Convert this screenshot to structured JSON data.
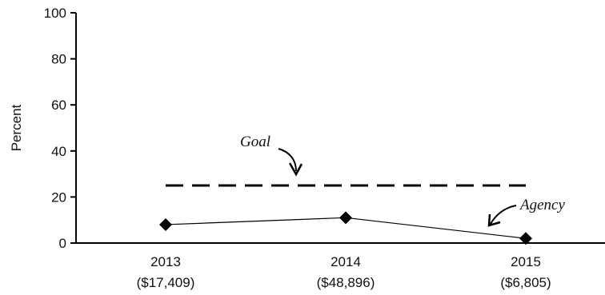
{
  "chart_data": {
    "type": "line",
    "ylabel": "Percent",
    "ylim": [
      0,
      100
    ],
    "yticks": [
      0,
      20,
      40,
      60,
      80,
      100
    ],
    "categories": [
      {
        "year": "2013",
        "amount": "($17,409)"
      },
      {
        "year": "2014",
        "amount": "($48,896)"
      },
      {
        "year": "2015",
        "amount": "($6,805)"
      }
    ],
    "series": [
      {
        "name": "Agency",
        "values": [
          8,
          11,
          2
        ],
        "style": "solid",
        "marker": "diamond",
        "color": "#000000"
      },
      {
        "name": "Goal",
        "values": [
          25,
          25,
          25
        ],
        "style": "dashed",
        "color": "#000000"
      }
    ],
    "annotations": {
      "goal_label": "Goal",
      "agency_label": "Agency"
    },
    "grid": false
  }
}
